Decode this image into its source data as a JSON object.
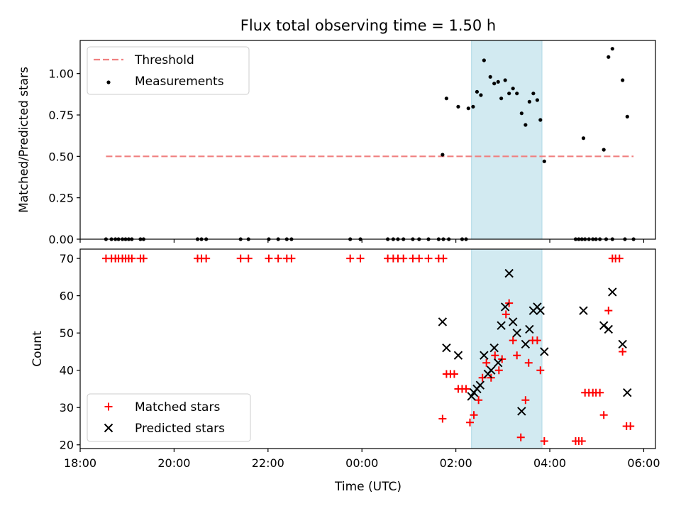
{
  "figure": {
    "title": "Flux total observing time = 1.50 h",
    "xlabel": "Time (UTC)",
    "shade_color": "#add8e6",
    "shade_span": [
      "02:20",
      "03:50"
    ]
  },
  "chart_data": [
    {
      "type": "scatter",
      "ylabel": "Matched/Predicted stars",
      "xlim": [
        "18:00",
        "06:15"
      ],
      "ylim": [
        0,
        1.2
      ],
      "yticks": [
        "0.00",
        "0.25",
        "0.50",
        "0.75",
        "1.00"
      ],
      "grid": false,
      "legend_position": "upper left",
      "threshold": {
        "name": "Threshold",
        "value": 0.5,
        "x": [
          "18:33",
          "05:47"
        ],
        "color": "#f08080"
      },
      "series": [
        {
          "name": "Measurements",
          "color": "#000000",
          "points": [
            [
              "18:33",
              0
            ],
            [
              "18:40",
              0
            ],
            [
              "18:45",
              0
            ],
            [
              "18:49",
              0
            ],
            [
              "18:54",
              0
            ],
            [
              "18:58",
              0
            ],
            [
              "19:02",
              0
            ],
            [
              "19:06",
              0
            ],
            [
              "19:17",
              0
            ],
            [
              "19:21",
              0
            ],
            [
              "20:30",
              0
            ],
            [
              "20:35",
              0
            ],
            [
              "20:41",
              0
            ],
            [
              "21:25",
              0
            ],
            [
              "21:35",
              0
            ],
            [
              "22:01",
              0
            ],
            [
              "22:13",
              0
            ],
            [
              "22:24",
              0
            ],
            [
              "22:30",
              0
            ],
            [
              "23:45",
              0
            ],
            [
              "23:58",
              0
            ],
            [
              "00:33",
              0
            ],
            [
              "00:40",
              0
            ],
            [
              "00:46",
              0
            ],
            [
              "00:53",
              0
            ],
            [
              "01:05",
              0
            ],
            [
              "01:13",
              0
            ],
            [
              "01:25",
              0
            ],
            [
              "01:38",
              0
            ],
            [
              "01:44",
              0
            ],
            [
              "01:51",
              0
            ],
            [
              "02:08",
              0
            ],
            [
              "02:13",
              0
            ],
            [
              "01:43",
              0.51
            ],
            [
              "01:48",
              0.85
            ],
            [
              "02:03",
              0.8
            ],
            [
              "02:16",
              0.79
            ],
            [
              "02:22",
              0.8
            ],
            [
              "02:27",
              0.89
            ],
            [
              "02:32",
              0.87
            ],
            [
              "02:36",
              1.08
            ],
            [
              "02:44",
              0.98
            ],
            [
              "02:49",
              0.94
            ],
            [
              "02:54",
              0.95
            ],
            [
              "02:58",
              0.85
            ],
            [
              "03:03",
              0.96
            ],
            [
              "03:08",
              0.88
            ],
            [
              "03:13",
              0.91
            ],
            [
              "03:18",
              0.88
            ],
            [
              "03:24",
              0.76
            ],
            [
              "03:29",
              0.69
            ],
            [
              "03:34",
              0.83
            ],
            [
              "03:39",
              0.88
            ],
            [
              "03:44",
              0.84
            ],
            [
              "03:48",
              0.72
            ],
            [
              "03:53",
              0.47
            ],
            [
              "04:33",
              0
            ],
            [
              "04:37",
              0
            ],
            [
              "04:41",
              0
            ],
            [
              "04:45",
              0
            ],
            [
              "04:50",
              0
            ],
            [
              "04:55",
              0
            ],
            [
              "04:59",
              0
            ],
            [
              "05:04",
              0
            ],
            [
              "05:12",
              0
            ],
            [
              "05:20",
              0
            ],
            [
              "05:36",
              0
            ],
            [
              "05:47",
              0
            ],
            [
              "04:43",
              0.61
            ],
            [
              "05:09",
              0.54
            ],
            [
              "05:15",
              1.1
            ],
            [
              "05:20",
              1.15
            ],
            [
              "05:33",
              0.96
            ],
            [
              "05:39",
              0.74
            ]
          ]
        }
      ]
    },
    {
      "type": "scatter",
      "ylabel": "Count",
      "xlim": [
        "18:00",
        "06:15"
      ],
      "ylim": [
        19,
        72.5
      ],
      "yticks": [
        "20",
        "30",
        "40",
        "50",
        "60",
        "70"
      ],
      "xticks": [
        "18:00",
        "20:00",
        "22:00",
        "00:00",
        "02:00",
        "04:00",
        "06:00"
      ],
      "grid": false,
      "legend_position": "lower left",
      "series": [
        {
          "name": "Matched stars",
          "color": "#ff0000",
          "points": [
            [
              "18:33",
              70
            ],
            [
              "18:40",
              70
            ],
            [
              "18:45",
              70
            ],
            [
              "18:49",
              70
            ],
            [
              "18:54",
              70
            ],
            [
              "18:58",
              70
            ],
            [
              "19:02",
              70
            ],
            [
              "19:06",
              70
            ],
            [
              "19:17",
              70
            ],
            [
              "19:21",
              70
            ],
            [
              "20:30",
              70
            ],
            [
              "20:35",
              70
            ],
            [
              "20:41",
              70
            ],
            [
              "21:25",
              70
            ],
            [
              "21:35",
              70
            ],
            [
              "22:01",
              70
            ],
            [
              "22:13",
              70
            ],
            [
              "22:24",
              70
            ],
            [
              "22:30",
              70
            ],
            [
              "23:45",
              70
            ],
            [
              "23:58",
              70
            ],
            [
              "00:33",
              70
            ],
            [
              "00:40",
              70
            ],
            [
              "00:46",
              70
            ],
            [
              "00:53",
              70
            ],
            [
              "01:05",
              70
            ],
            [
              "01:13",
              70
            ],
            [
              "01:25",
              70
            ],
            [
              "01:38",
              70
            ],
            [
              "01:44",
              70
            ],
            [
              "01:43",
              27
            ],
            [
              "01:48",
              39
            ],
            [
              "01:53",
              39
            ],
            [
              "01:58",
              39
            ],
            [
              "02:03",
              35
            ],
            [
              "02:08",
              35
            ],
            [
              "02:13",
              35
            ],
            [
              "02:18",
              26
            ],
            [
              "02:23",
              28
            ],
            [
              "02:29",
              32
            ],
            [
              "02:34",
              38
            ],
            [
              "02:39",
              42
            ],
            [
              "02:45",
              38
            ],
            [
              "02:50",
              44
            ],
            [
              "02:55",
              40
            ],
            [
              "02:59",
              43
            ],
            [
              "03:04",
              55
            ],
            [
              "03:08",
              58
            ],
            [
              "03:13",
              48
            ],
            [
              "03:18",
              44
            ],
            [
              "03:23",
              22
            ],
            [
              "03:29",
              32
            ],
            [
              "03:33",
              42
            ],
            [
              "03:38",
              48
            ],
            [
              "03:44",
              48
            ],
            [
              "03:48",
              40
            ],
            [
              "03:53",
              21
            ],
            [
              "04:33",
              21
            ],
            [
              "04:37",
              21
            ],
            [
              "04:41",
              21
            ],
            [
              "04:45",
              34
            ],
            [
              "04:50",
              34
            ],
            [
              "04:55",
              34
            ],
            [
              "04:59",
              34
            ],
            [
              "05:04",
              34
            ],
            [
              "05:09",
              28
            ],
            [
              "05:15",
              56
            ],
            [
              "05:20",
              70
            ],
            [
              "05:24",
              70
            ],
            [
              "05:29",
              70
            ],
            [
              "05:33",
              45
            ],
            [
              "05:38",
              25
            ],
            [
              "05:43",
              25
            ]
          ]
        },
        {
          "name": "Predicted stars",
          "color": "#000000",
          "points": [
            [
              "01:43",
              53
            ],
            [
              "01:48",
              46
            ],
            [
              "02:03",
              44
            ],
            [
              "02:20",
              33
            ],
            [
              "02:23",
              34
            ],
            [
              "02:27",
              35
            ],
            [
              "02:31",
              36
            ],
            [
              "02:36",
              44
            ],
            [
              "02:41",
              39
            ],
            [
              "02:45",
              40
            ],
            [
              "02:49",
              46
            ],
            [
              "02:54",
              42
            ],
            [
              "02:58",
              52
            ],
            [
              "03:03",
              57
            ],
            [
              "03:08",
              66
            ],
            [
              "03:13",
              53
            ],
            [
              "03:18",
              50
            ],
            [
              "03:24",
              29
            ],
            [
              "03:29",
              47
            ],
            [
              "03:34",
              51
            ],
            [
              "03:39",
              56
            ],
            [
              "03:44",
              57
            ],
            [
              "03:48",
              56
            ],
            [
              "03:53",
              45
            ],
            [
              "04:43",
              56
            ],
            [
              "05:09",
              52
            ],
            [
              "05:15",
              51
            ],
            [
              "05:20",
              61
            ],
            [
              "05:33",
              47
            ],
            [
              "05:39",
              34
            ]
          ]
        }
      ]
    }
  ]
}
